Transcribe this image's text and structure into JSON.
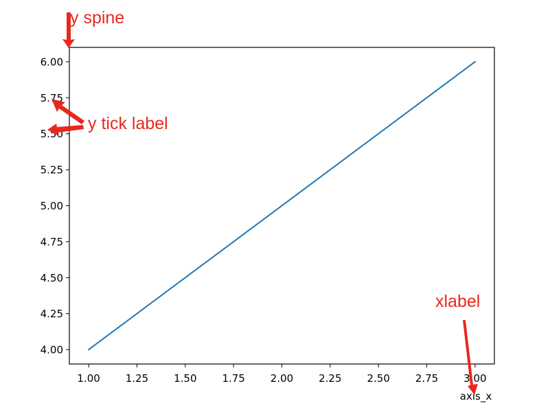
{
  "chart_data": {
    "type": "line",
    "title": "",
    "xlabel": "axis_x",
    "ylabel": "",
    "x": [
      1,
      3
    ],
    "series": [
      {
        "values": [
          4,
          6
        ],
        "color": "#1f77b4"
      }
    ],
    "xlim": [
      0.9,
      3.1
    ],
    "ylim": [
      3.9,
      6.1
    ],
    "xticks": [
      1.0,
      1.25,
      1.5,
      1.75,
      2.0,
      2.25,
      2.5,
      2.75,
      3.0
    ],
    "xtick_labels": [
      "1.00",
      "1.25",
      "1.50",
      "1.75",
      "2.00",
      "2.25",
      "2.50",
      "2.75",
      "3.00"
    ],
    "yticks": [
      4.0,
      4.25,
      4.5,
      4.75,
      5.0,
      5.25,
      5.5,
      5.75,
      6.0
    ],
    "ytick_labels": [
      "4.00",
      "4.25",
      "4.50",
      "4.75",
      "5.00",
      "5.25",
      "5.50",
      "5.75",
      "6.00"
    ],
    "grid": false,
    "legend": "none"
  },
  "annotations": [
    {
      "text": "y spine",
      "color": "#e8281e"
    },
    {
      "text": "y tick label",
      "color": "#e8281e"
    },
    {
      "text": "xlabel",
      "color": "#e8281e"
    }
  ]
}
